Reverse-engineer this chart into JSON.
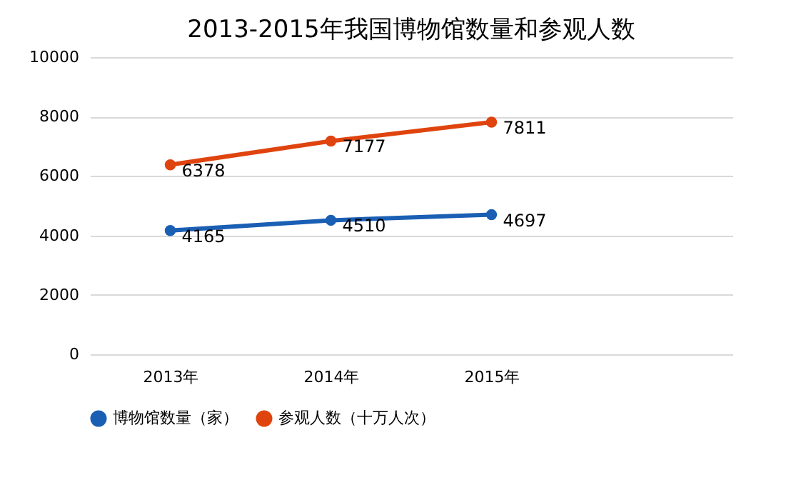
{
  "chart_data": {
    "type": "line",
    "title": "2013-2015年我国博物馆数量和参观人数",
    "categories": [
      "2013年",
      "2014年",
      "2015年",
      null
    ],
    "series": [
      {
        "name": "博物馆数量（家）",
        "color": "#1a5fb4",
        "values": [
          4165,
          4510,
          4697,
          null
        ]
      },
      {
        "name": "参观人数（十万人次）",
        "color": "#e0440e",
        "values": [
          6378,
          7177,
          7811,
          null
        ]
      }
    ],
    "ylim": [
      0,
      10000
    ],
    "yticks": [
      0,
      2000,
      4000,
      6000,
      8000,
      10000
    ],
    "grid": "y",
    "legend": "bottom",
    "marker": "circle",
    "line_style": "solid",
    "data_labels": true
  }
}
